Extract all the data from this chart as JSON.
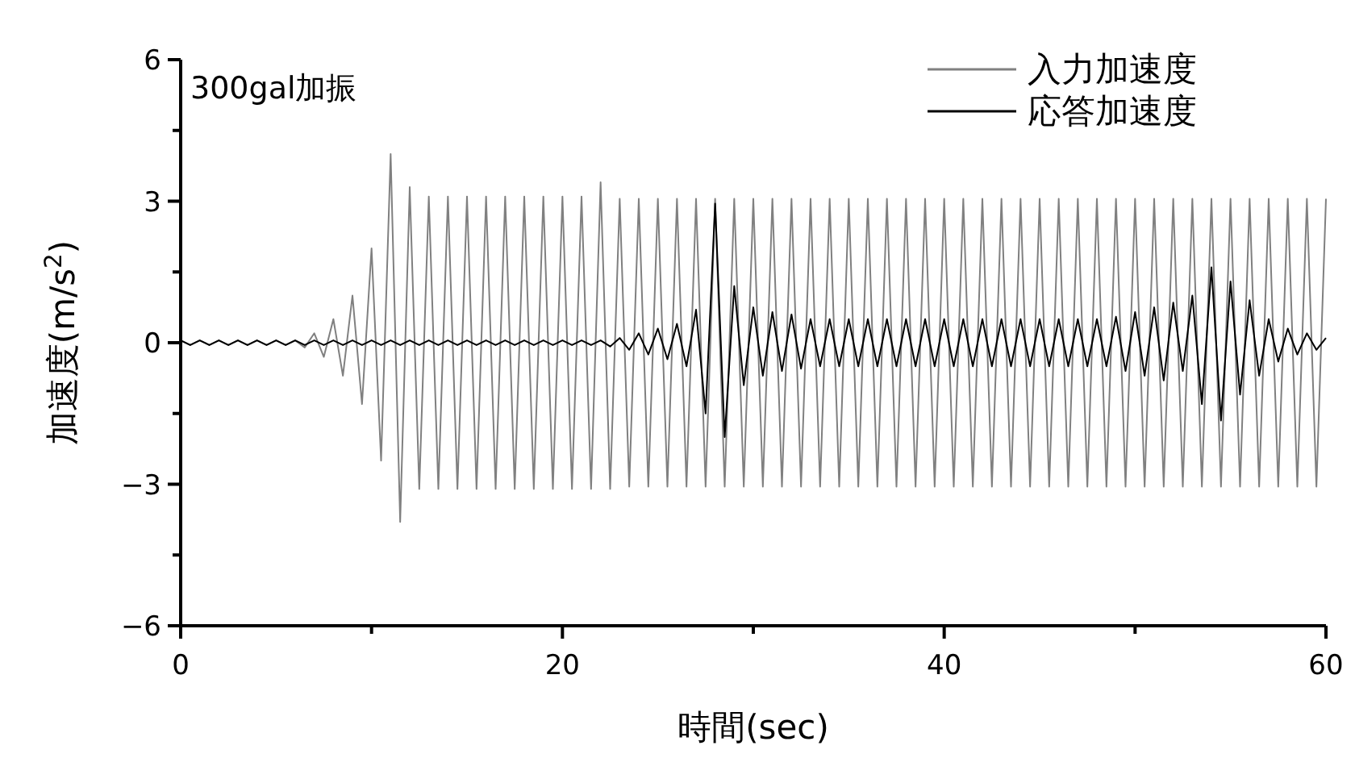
{
  "chart_data": {
    "type": "line",
    "annotations": [
      "300gal加振"
    ],
    "xlabel": "時間(sec)",
    "ylabel": "加速度(m/s$^{2}$)",
    "xlim": [
      0,
      60
    ],
    "ylim": [
      -6,
      6
    ],
    "xticks": [
      0,
      {
        "value": 10,
        "label": null
      },
      20,
      {
        "value": 30,
        "label": null
      },
      40,
      {
        "value": 50,
        "label": null
      },
      60
    ],
    "yticks": [
      -6,
      {
        "value": -4.5,
        "label": null
      },
      -3,
      {
        "value": -1.5,
        "label": null
      },
      0,
      {
        "value": 1.5,
        "label": null
      },
      3,
      {
        "value": 4.5,
        "label": null
      },
      6
    ],
    "legend": "top right",
    "x": [
      0,
      0.5,
      1,
      1.5,
      2,
      2.5,
      3,
      3.5,
      4,
      4.5,
      5,
      5.5,
      6,
      6.5,
      7,
      7.5,
      8,
      8.5,
      9,
      9.5,
      10,
      10.5,
      11,
      11.5,
      12,
      12.5,
      13,
      13.5,
      14,
      14.5,
      15,
      15.5,
      16,
      16.5,
      17,
      17.5,
      18,
      18.5,
      19,
      19.5,
      20,
      20.5,
      21,
      21.5,
      22,
      22.5,
      23,
      23.5,
      24,
      24.5,
      25,
      25.5,
      26,
      26.5,
      27,
      27.5,
      28,
      28.5,
      29,
      29.5,
      30,
      30.5,
      31,
      31.5,
      32,
      32.5,
      33,
      33.5,
      34,
      34.5,
      35,
      35.5,
      36,
      36.5,
      37,
      37.5,
      38,
      38.5,
      39,
      39.5,
      40,
      40.5,
      41,
      41.5,
      42,
      42.5,
      43,
      43.5,
      44,
      44.5,
      45,
      45.5,
      46,
      46.5,
      47,
      47.5,
      48,
      48.5,
      49,
      49.5,
      50,
      50.5,
      51,
      51.5,
      52,
      52.5,
      53,
      53.5,
      54,
      54.5,
      55,
      55.5,
      56,
      56.5,
      57,
      57.5,
      58,
      58.5,
      59,
      59.5,
      60
    ],
    "series": [
      {
        "name": "入力加速度",
        "color": "#808080",
        "values": [
          0.05,
          -0.05,
          0.05,
          -0.05,
          0.05,
          -0.05,
          0.05,
          -0.05,
          0.05,
          -0.05,
          0.05,
          -0.05,
          0.05,
          -0.1,
          0.2,
          -0.3,
          0.5,
          -0.7,
          1.0,
          -1.3,
          2.0,
          -2.5,
          4.0,
          -3.8,
          3.3,
          -3.1,
          3.1,
          -3.1,
          3.1,
          -3.1,
          3.1,
          -3.1,
          3.1,
          -3.1,
          3.1,
          -3.1,
          3.1,
          -3.1,
          3.1,
          -3.1,
          3.1,
          -3.1,
          3.1,
          -3.1,
          3.4,
          -3.1,
          3.05,
          -3.05,
          3.05,
          -3.05,
          3.05,
          -3.05,
          3.05,
          -3.05,
          3.05,
          -3.05,
          3.05,
          -3.05,
          3.05,
          -3.05,
          3.05,
          -3.05,
          3.05,
          -3.05,
          3.05,
          -3.05,
          3.05,
          -3.05,
          3.05,
          -3.05,
          3.05,
          -3.05,
          3.05,
          -3.05,
          3.05,
          -3.05,
          3.05,
          -3.05,
          3.05,
          -3.05,
          3.05,
          -3.05,
          3.05,
          -3.05,
          3.05,
          -3.05,
          3.05,
          -3.05,
          3.05,
          -3.05,
          3.05,
          -3.05,
          3.05,
          -3.05,
          3.05,
          -3.05,
          3.05,
          -3.05,
          3.05,
          -3.05,
          3.05,
          -3.05,
          3.05,
          -3.05,
          3.05,
          -3.05,
          3.05,
          -3.05,
          3.05,
          -3.05,
          3.05,
          -3.05,
          3.05,
          -3.05,
          3.05,
          -3.05,
          3.05,
          -3.05,
          3.05,
          -3.05,
          3.05
        ]
      },
      {
        "name": "応答加速度",
        "color": "#000000",
        "values": [
          0.05,
          -0.05,
          0.05,
          -0.05,
          0.05,
          -0.05,
          0.05,
          -0.05,
          0.05,
          -0.05,
          0.05,
          -0.05,
          0.05,
          -0.05,
          0.05,
          -0.05,
          0.05,
          -0.05,
          0.05,
          -0.05,
          0.05,
          -0.05,
          0.05,
          -0.05,
          0.05,
          -0.05,
          0.05,
          -0.05,
          0.05,
          -0.05,
          0.05,
          -0.05,
          0.05,
          -0.05,
          0.05,
          -0.05,
          0.05,
          -0.05,
          0.05,
          -0.05,
          0.05,
          -0.05,
          0.05,
          -0.05,
          0.05,
          -0.08,
          0.1,
          -0.15,
          0.2,
          -0.25,
          0.3,
          -0.35,
          0.4,
          -0.5,
          0.7,
          -1.5,
          2.95,
          -2.0,
          1.2,
          -0.9,
          0.75,
          -0.7,
          0.65,
          -0.6,
          0.6,
          -0.55,
          0.5,
          -0.5,
          0.5,
          -0.5,
          0.5,
          -0.5,
          0.5,
          -0.5,
          0.5,
          -0.5,
          0.5,
          -0.5,
          0.5,
          -0.5,
          0.5,
          -0.5,
          0.5,
          -0.5,
          0.5,
          -0.5,
          0.5,
          -0.5,
          0.5,
          -0.5,
          0.5,
          -0.5,
          0.5,
          -0.5,
          0.5,
          -0.5,
          0.5,
          -0.5,
          0.55,
          -0.6,
          0.65,
          -0.7,
          0.75,
          -0.8,
          0.85,
          -0.6,
          1.0,
          -1.3,
          1.6,
          -1.65,
          1.3,
          -1.1,
          0.9,
          -0.7,
          0.5,
          -0.4,
          0.3,
          -0.25,
          0.2,
          -0.15,
          0.1
        ]
      }
    ]
  }
}
